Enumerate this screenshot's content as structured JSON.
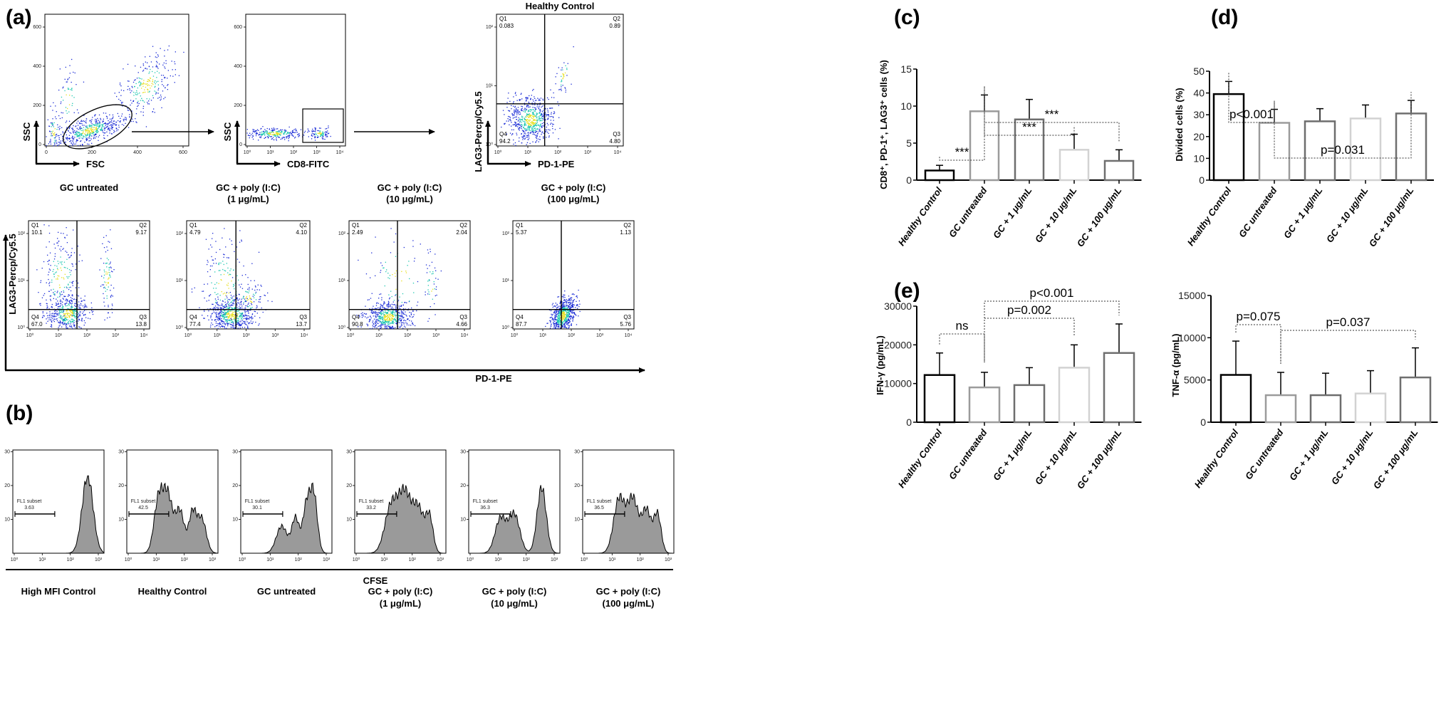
{
  "panel_labels": {
    "a": "(a)",
    "b": "(b)",
    "c": "(c)",
    "d": "(d)",
    "e": "(e)"
  },
  "panel_a": {
    "gating": [
      {
        "ylabel": "SSC",
        "xlabel": "FSC",
        "yticks": [
          "0",
          "200",
          "400",
          "600"
        ],
        "xticks": [
          "0",
          "200",
          "400",
          "600"
        ],
        "gate": "ellipse"
      },
      {
        "ylabel": "SSC",
        "xlabel": "CD8-FITC",
        "yticks": [
          "0",
          "200",
          "400",
          "600"
        ],
        "xticks": [
          "10⁰",
          "10¹",
          "10²",
          "10³",
          "10⁴"
        ],
        "gate": "rectangle"
      },
      {
        "title": "Healthy Control",
        "ylabel": "LAG3-Percp/Cy5.5",
        "xlabel": "PD-1-PE",
        "yticks": [
          "10⁰",
          "10¹",
          "10²"
        ],
        "xticks": [
          "10⁰",
          "10¹",
          "10²",
          "10³",
          "10⁴"
        ],
        "quadrants": {
          "Q1": {
            "name": "Q1",
            "value": "0.083"
          },
          "Q2": {
            "name": "Q2",
            "value": "0.89"
          },
          "Q3": {
            "name": "Q3",
            "value": "4.80"
          },
          "Q4": {
            "name": "Q4",
            "value": "94.2"
          }
        }
      }
    ],
    "treatment_ylabel": "LAG3-Percp/Cy5.5",
    "treatment_xlabel": "PD-1-PE",
    "log_yticks": [
      "10⁰",
      "10¹",
      "10²"
    ],
    "log_xticks": [
      "10⁰",
      "10¹",
      "10²",
      "10³",
      "10⁴"
    ],
    "treatments": [
      {
        "title": "GC untreated",
        "subtitle": "",
        "quadrants": {
          "Q1": {
            "name": "Q1",
            "value": "10.1"
          },
          "Q2": {
            "name": "Q2",
            "value": "9.17"
          },
          "Q3": {
            "name": "Q3",
            "value": "13.8"
          },
          "Q4": {
            "name": "Q4",
            "value": "67.0"
          }
        }
      },
      {
        "title": "GC + poly (I:C)",
        "subtitle": "(1 μg/mL)",
        "quadrants": {
          "Q1": {
            "name": "Q1",
            "value": "4.79"
          },
          "Q2": {
            "name": "Q2",
            "value": "4.10"
          },
          "Q3": {
            "name": "Q3",
            "value": "13.7"
          },
          "Q4": {
            "name": "Q4",
            "value": "77.4"
          }
        }
      },
      {
        "title": "GC + poly (I:C)",
        "subtitle": "(10 μg/mL)",
        "quadrants": {
          "Q1": {
            "name": "Q1",
            "value": "2.49"
          },
          "Q2": {
            "name": "Q2",
            "value": "2.04"
          },
          "Q3": {
            "name": "Q3",
            "value": "4.66"
          },
          "Q4": {
            "name": "Q4",
            "value": "90.8"
          }
        }
      },
      {
        "title": "GC + poly (I:C)",
        "subtitle": "(100 μg/mL)",
        "quadrants": {
          "Q1": {
            "name": "Q1",
            "value": "5.37"
          },
          "Q2": {
            "name": "Q2",
            "value": "1.13"
          },
          "Q3": {
            "name": "Q3",
            "value": "5.76"
          },
          "Q4": {
            "name": "Q4",
            "value": "87.7"
          }
        }
      }
    ]
  },
  "panel_b": {
    "xlabel": "CFSE",
    "gate_label": "FL1 subset",
    "yticks": [
      "10",
      "20",
      "30"
    ],
    "xticks": [
      "10⁰",
      "10¹",
      "10²",
      "10³"
    ],
    "histograms": [
      {
        "label": "High MFI Control",
        "sublabel": "",
        "value": "3.63"
      },
      {
        "label": "Healthy Control",
        "sublabel": "",
        "value": "42.5"
      },
      {
        "label": "GC untreated",
        "sublabel": "",
        "value": "30.1"
      },
      {
        "label": "GC + poly (I:C)",
        "sublabel": "(1 μg/mL)",
        "value": "33.2"
      },
      {
        "label": "GC + poly (I:C)",
        "sublabel": "(10 μg/mL)",
        "value": "36.3"
      },
      {
        "label": "GC + poly (I:C)",
        "sublabel": "(100 μg/mL)",
        "value": "36.5"
      }
    ]
  },
  "colors": {
    "bars": [
      "#000000",
      "#9b9b9b",
      "#6d6d6d",
      "#d2d2d2",
      "#6f6f6f"
    ],
    "scatter_low": "#1a2bd6",
    "scatter_mid": "#1fc8b0",
    "scatter_high": "#e8e020",
    "histogram_fill": "#9a9a9a"
  },
  "chart_data": [
    {
      "id": "c",
      "type": "bar",
      "title": "",
      "xlabel": "",
      "ylabel": "CD8⁺, PD-1⁺, LAG3⁺ cells (%)",
      "ylim": [
        0,
        15
      ],
      "yticks": [
        "0",
        "5",
        "10",
        "15"
      ],
      "categories": [
        "Healthy Control",
        "GC untreated",
        "GC + 1 μg/mL",
        "GC + 10 μg/mL",
        "GC + 100 μg/mL"
      ],
      "values": [
        1.3,
        9.3,
        8.2,
        4.1,
        2.6
      ],
      "error_upper": [
        2.0,
        11.5,
        10.9,
        6.2,
        4.1
      ],
      "annotations": [
        {
          "label": "***",
          "from": 0,
          "to": 1
        },
        {
          "label": "***",
          "from": 1,
          "to": 3
        },
        {
          "label": "***",
          "from": 1,
          "to": 4
        }
      ]
    },
    {
      "id": "d",
      "type": "bar",
      "title": "",
      "xlabel": "",
      "ylabel": "Divided cells (%)",
      "ylim": [
        0,
        50
      ],
      "yticks": [
        "0",
        "10",
        "20",
        "30",
        "40",
        "50"
      ],
      "categories": [
        "Healthy Control",
        "GC untreated",
        "GC + 1 μg/mL",
        "GC + 10 μg/mL",
        "GC + 100 μg/mL"
      ],
      "values": [
        39.5,
        26.3,
        27.0,
        28.3,
        30.6
      ],
      "error_upper": [
        45.3,
        32.5,
        32.8,
        34.5,
        36.6
      ],
      "annotations": [
        {
          "label": "p<0.001",
          "from": 0,
          "to": 1
        },
        {
          "label": "p=0.031",
          "from": 1,
          "to": 4
        }
      ]
    },
    {
      "id": "e1",
      "type": "bar",
      "title": "",
      "xlabel": "",
      "ylabel": "IFN-γ (pg/mL)",
      "ylim": [
        0,
        30000
      ],
      "yticks": [
        "0",
        "10000",
        "20000",
        "30000"
      ],
      "categories": [
        "Healthy Control",
        "GC untreated",
        "GC + 1 μg/mL",
        "GC + 10 μg/mL",
        "GC + 100 μg/mL"
      ],
      "values": [
        12200,
        9000,
        9600,
        14100,
        17900
      ],
      "error_upper": [
        17900,
        12900,
        14100,
        20000,
        25400
      ],
      "annotations": [
        {
          "label": "ns",
          "from": 0,
          "to": 1
        },
        {
          "label": "p=0.002",
          "from": 1,
          "to": 3
        },
        {
          "label": "p<0.001",
          "from": 1,
          "to": 4
        }
      ]
    },
    {
      "id": "e2",
      "type": "bar",
      "title": "",
      "xlabel": "",
      "ylabel": "TNF-α (pg/mL)",
      "ylim": [
        0,
        15000
      ],
      "yticks": [
        "0",
        "5000",
        "10000",
        "15000"
      ],
      "categories": [
        "Healthy Control",
        "GC untreated",
        "GC + 1 μg/mL",
        "GC + 10 μg/mL",
        "GC + 100 μg/mL"
      ],
      "values": [
        5600,
        3200,
        3200,
        3400,
        5300
      ],
      "error_upper": [
        9600,
        5900,
        5800,
        6100,
        8800
      ],
      "annotations": [
        {
          "label": "p=0.075",
          "from": 0,
          "to": 1
        },
        {
          "label": "p=0.037",
          "from": 1,
          "to": 4
        }
      ]
    }
  ]
}
